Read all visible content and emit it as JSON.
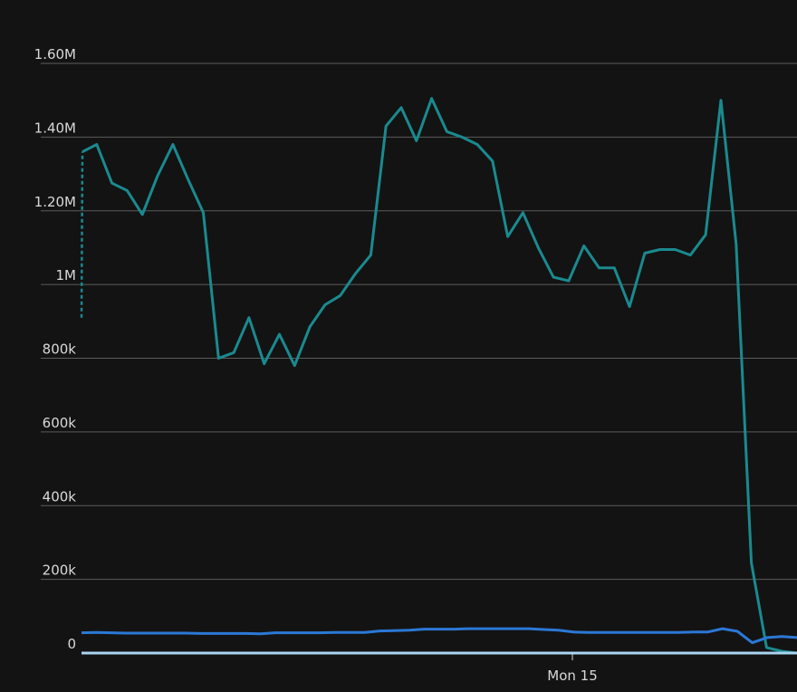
{
  "chart_data": {
    "type": "line",
    "x_tick_labels": [
      "Mon 15"
    ],
    "y_tick_labels": [
      "0",
      "200k",
      "400k",
      "600k",
      "800k",
      "1M",
      "1.20M",
      "1.40M",
      "1.60M"
    ],
    "ylim": [
      0,
      1600000
    ],
    "grid": true,
    "series": [
      {
        "color": "#1a8a8f",
        "values": [
          1360000,
          1380000,
          1275000,
          1255000,
          1190000,
          1295000,
          1380000,
          1285000,
          1195000,
          800000,
          815000,
          910000,
          785000,
          865000,
          780000,
          885000,
          945000,
          970000,
          1030000,
          1080000,
          1430000,
          1480000,
          1390000,
          1505000,
          1415000,
          1400000,
          1380000,
          1335000,
          1130000,
          1195000,
          1100000,
          1020000,
          1010000,
          1105000,
          1045000,
          1045000,
          940000,
          1085000,
          1095000,
          1095000,
          1080000,
          1135000,
          1500000,
          1110000,
          245000,
          15000,
          5000,
          0
        ],
        "leading_dashed_from": 910000
      },
      {
        "color": "#2b78d6",
        "values": [
          55000,
          56000,
          55000,
          54000,
          54000,
          54000,
          54000,
          54000,
          53000,
          53000,
          53000,
          53000,
          52000,
          55000,
          55000,
          55000,
          55000,
          56000,
          56000,
          56000,
          60000,
          61000,
          62000,
          65000,
          65000,
          65000,
          66000,
          66000,
          66000,
          66000,
          66000,
          64000,
          62000,
          57000,
          56000,
          56000,
          56000,
          56000,
          56000,
          56000,
          56000,
          57000,
          57000,
          66000,
          59000,
          28000,
          42000,
          45000,
          42000
        ]
      },
      {
        "color": "#a8d4f0",
        "values": [
          0,
          0
        ]
      }
    ]
  }
}
